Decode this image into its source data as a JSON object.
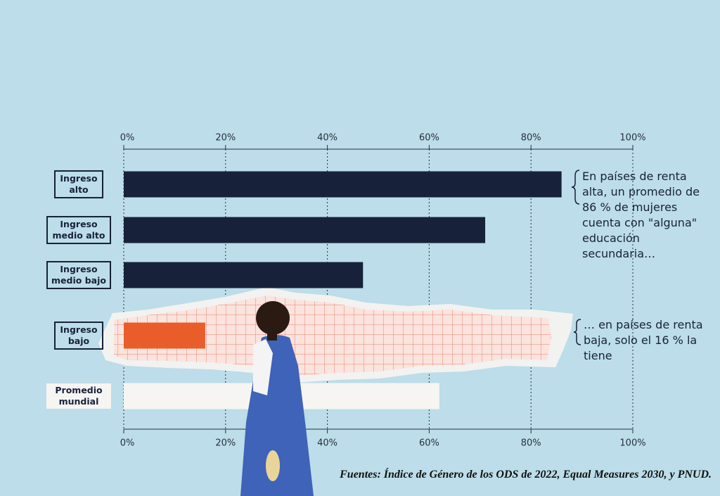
{
  "chart_data": {
    "type": "bar",
    "orientation": "horizontal",
    "categories": [
      "Ingreso alto",
      "Ingreso medio alto",
      "Ingreso medio bajo",
      "Ingreso bajo",
      "Promedio mundial"
    ],
    "values": [
      86,
      71,
      47,
      16,
      62
    ],
    "colors": [
      "#18213a",
      "#18213a",
      "#18213a",
      "#e85d2a",
      "#f7f5f2"
    ],
    "xlim": [
      0,
      100
    ],
    "xticks": [
      {
        "value": 0,
        "label": "0%"
      },
      {
        "value": 20,
        "label": "20%"
      },
      {
        "value": 40,
        "label": "40%"
      },
      {
        "value": 60,
        "label": "60%"
      },
      {
        "value": 80,
        "label": "80%"
      },
      {
        "value": 100,
        "label": "100%"
      }
    ],
    "grid": true,
    "annotations": [
      "En países de renta alta, un promedio de 86 % de mujeres cuenta con \"alguna\" educación secundaria…",
      "… en países de renta baja, solo el 16 % la tiene"
    ],
    "source": "Fuentes: Índice de Género de los ODS de 2022, Equal Measures 2030, y PNUD."
  }
}
